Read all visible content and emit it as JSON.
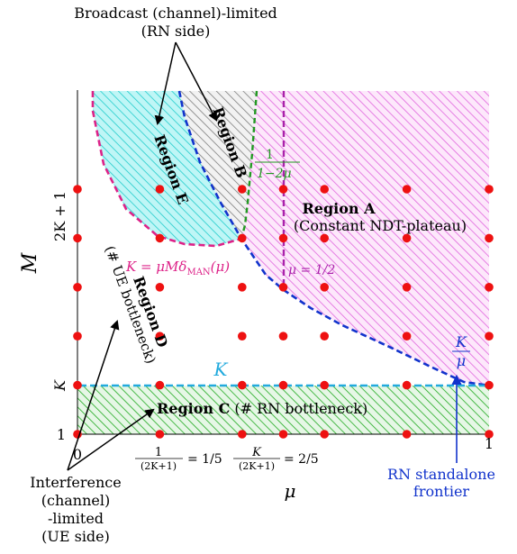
{
  "axes": {
    "y_label": "M",
    "y_tick_1": "1",
    "y_tick_K": "K",
    "y_tick_2K1": "2K + 1",
    "x_tick_0": "0",
    "x_tick_1": "1",
    "x_label": "μ",
    "x_tick_a_num": "1",
    "x_tick_a_den": "(2K+1)",
    "x_tick_a_eq": "= 1/5",
    "x_tick_b_num": "K",
    "x_tick_b_den": "(2K+1)",
    "x_tick_b_eq": "= 2/5"
  },
  "annotations": {
    "broadcast_line1": "Broadcast (channel)-limited",
    "broadcast_line2": "(RN side)",
    "interference_lines": [
      "Interference",
      "(channel)",
      "-limited",
      "(UE side)"
    ],
    "rn_frontier_line1": "RN standalone",
    "rn_frontier_line2": "frontier",
    "region_a_title": "Region A",
    "region_a_sub": "(Constant NDT-plateau)",
    "region_b": "Region B",
    "region_c_title": "Region C",
    "region_c_sub": "(# RN bottleneck)",
    "region_d_title": "Region D",
    "region_d_sub1": "(# UE bottleneck)",
    "region_e": "Region E",
    "curve_man": "K = μMδ",
    "curve_man_sub": "MAN",
    "curve_man_tail": "(μ)",
    "mu_half": "μ = 1/2",
    "green_frac_num": "1",
    "green_frac_den": "1−2μ",
    "k_line_label": "K",
    "k_over_mu_num": "K",
    "k_over_mu_den": "μ"
  },
  "colors": {
    "points": "#ee1111",
    "region_a": "#e066dd",
    "region_b": "#666666",
    "region_c": "#22aa22",
    "region_e": "#22dddd",
    "frontier": "#1133cc",
    "man_curve": "#dd2288",
    "cyan_line": "#22aadd",
    "purple": "#aa22aa",
    "green": "#229922"
  },
  "grid_points": {
    "mu": [
      0,
      0.2,
      0.4,
      0.5,
      0.6,
      0.8,
      1
    ],
    "M": [
      1,
      3,
      5,
      7,
      9,
      11
    ]
  }
}
